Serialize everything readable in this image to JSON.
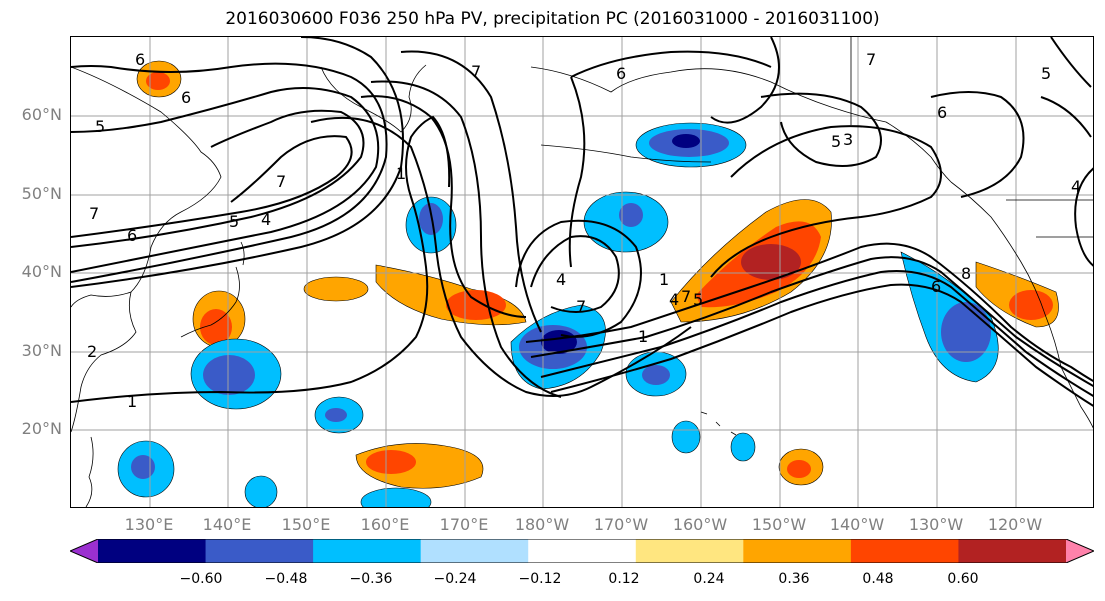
{
  "title": "2016030600 F036 250 hPa PV, precipitation PC (2016031000 - 2016031100)",
  "map": {
    "lat_labels": [
      "60°N",
      "50°N",
      "40°N",
      "30°N",
      "20°N"
    ],
    "lon_labels": [
      "130°E",
      "140°E",
      "150°E",
      "160°E",
      "170°E",
      "180°W",
      "170°W",
      "160°W",
      "150°W",
      "140°W",
      "130°W",
      "120°W"
    ],
    "lon_range": [
      120,
      250
    ],
    "lat_range": [
      10,
      70
    ],
    "contour_labels": [
      "6",
      "6",
      "5",
      "7",
      "6",
      "5",
      "4",
      "7",
      "1",
      "2",
      "1",
      "7",
      "4",
      "1",
      "6",
      "7",
      "4",
      "7",
      "5",
      "3",
      "1",
      "7",
      "6",
      "5",
      "4",
      "8",
      "6",
      "5"
    ]
  },
  "colorbar": {
    "tick_labels": [
      "−0.60",
      "−0.48",
      "−0.36",
      "−0.24",
      "−0.12",
      "0.12",
      "0.24",
      "0.36",
      "0.48",
      "0.60"
    ],
    "colors": [
      "#9b30d0",
      "#000080",
      "#3a5bc8",
      "#00bfff",
      "#b0e0ff",
      "#ffffff",
      "#ffe680",
      "#ffa500",
      "#ff4500",
      "#b22222",
      "#ff82ab"
    ],
    "extend": "both"
  }
}
